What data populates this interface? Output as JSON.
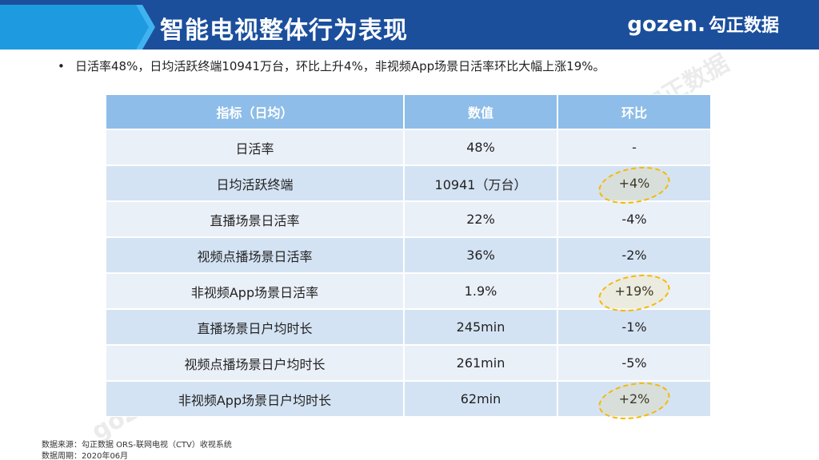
{
  "header": {
    "title": "智能电视整体行为表现",
    "logo_text": "gozen.",
    "logo_cn": "勾正数据"
  },
  "summary": {
    "bullet": "•",
    "text": "日活率48%，日均活跃终端10941万台，环比上升4%，非视频App场景日活率环比大幅上涨19%。"
  },
  "table": {
    "headers": [
      "指标（日均）",
      "数值",
      "环比"
    ],
    "rows": [
      [
        "日活率",
        "48%",
        "-"
      ],
      [
        "日均活跃终端",
        "10941（万台）",
        "+4%"
      ],
      [
        "直播场景日活率",
        "22%",
        "-4%"
      ],
      [
        "视频点播场景日活率",
        "36%",
        "-2%"
      ],
      [
        "非视频App场景日活率",
        "1.9%",
        "+19%"
      ],
      [
        "直播场景日户均时长",
        "245min",
        "-1%"
      ],
      [
        "视频点播场景日户均时长",
        "261min",
        "-5%"
      ],
      [
        "非视频App场景日户均时长",
        "62min",
        "+2%"
      ]
    ]
  },
  "footer": {
    "source": "数据来源：勾正数据 ORS-联网电视（CTV）收视系统",
    "period": "数据周期：2020年06月"
  },
  "watermark": "gozen.勾正数据",
  "colors": {
    "banner": "#1b4f9c",
    "banner_accent": "#1e9be0",
    "table_header": "#8dbde8",
    "row_light": "#eaf0f8",
    "row_dark": "#d4e3f3",
    "highlight": "#f5b800"
  }
}
